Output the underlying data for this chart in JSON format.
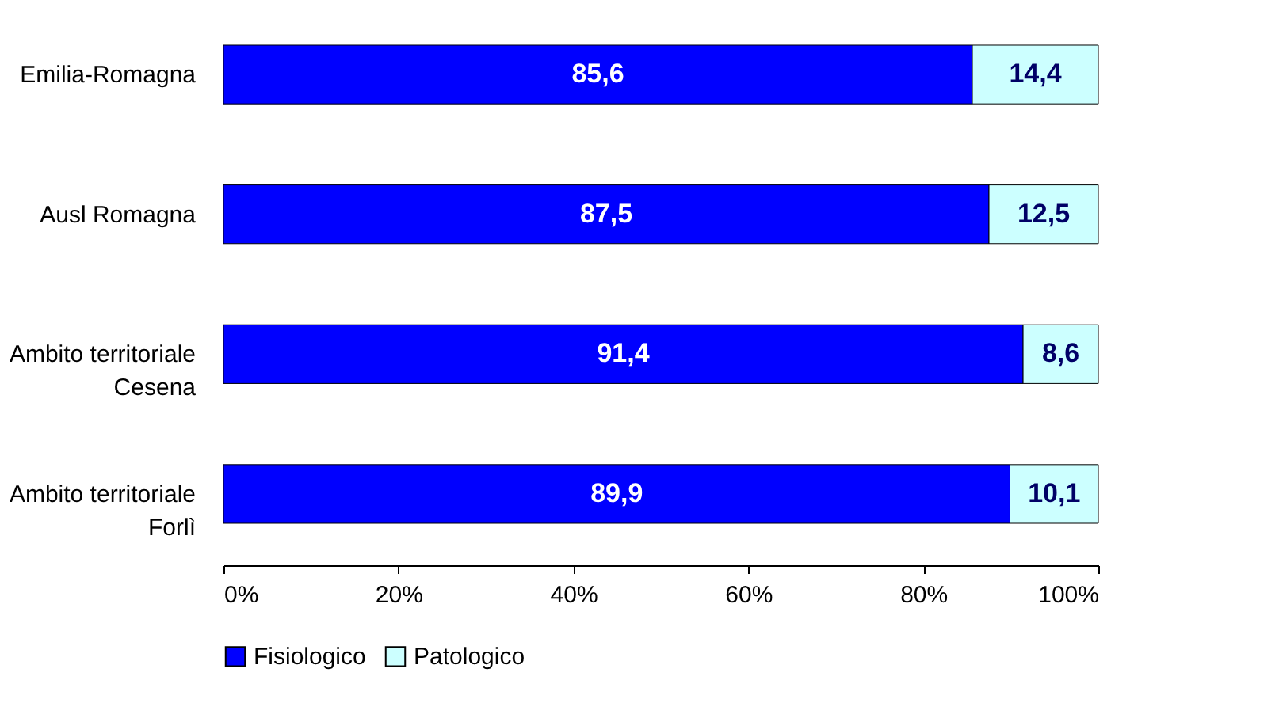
{
  "chart_data": {
    "type": "bar",
    "orientation": "horizontal",
    "stacked": true,
    "categories": [
      "Emilia-Romagna",
      "Ausl Romagna",
      "Ambito territoriale Cesena",
      "Ambito territoriale Forlì"
    ],
    "series": [
      {
        "name": "Fisiologico",
        "color": "#0000ff",
        "values": [
          85.6,
          87.5,
          91.4,
          89.9
        ],
        "value_labels": [
          "85,6",
          "87,5",
          "91,4",
          "89,9"
        ]
      },
      {
        "name": "Patologico",
        "color": "#ccffff",
        "values": [
          14.4,
          12.5,
          8.6,
          10.1
        ],
        "value_labels": [
          "14,4",
          "12,5",
          "8,6",
          "10,1"
        ]
      }
    ],
    "xlim": [
      0,
      100
    ],
    "xticks": [
      {
        "value": 0,
        "label": "0%"
      },
      {
        "value": 20,
        "label": "20%"
      },
      {
        "value": 40,
        "label": "40%"
      },
      {
        "value": 60,
        "label": "60%"
      },
      {
        "value": 80,
        "label": "80%"
      },
      {
        "value": 100,
        "label": "100%"
      }
    ],
    "grid": false,
    "legend": "bottom"
  }
}
